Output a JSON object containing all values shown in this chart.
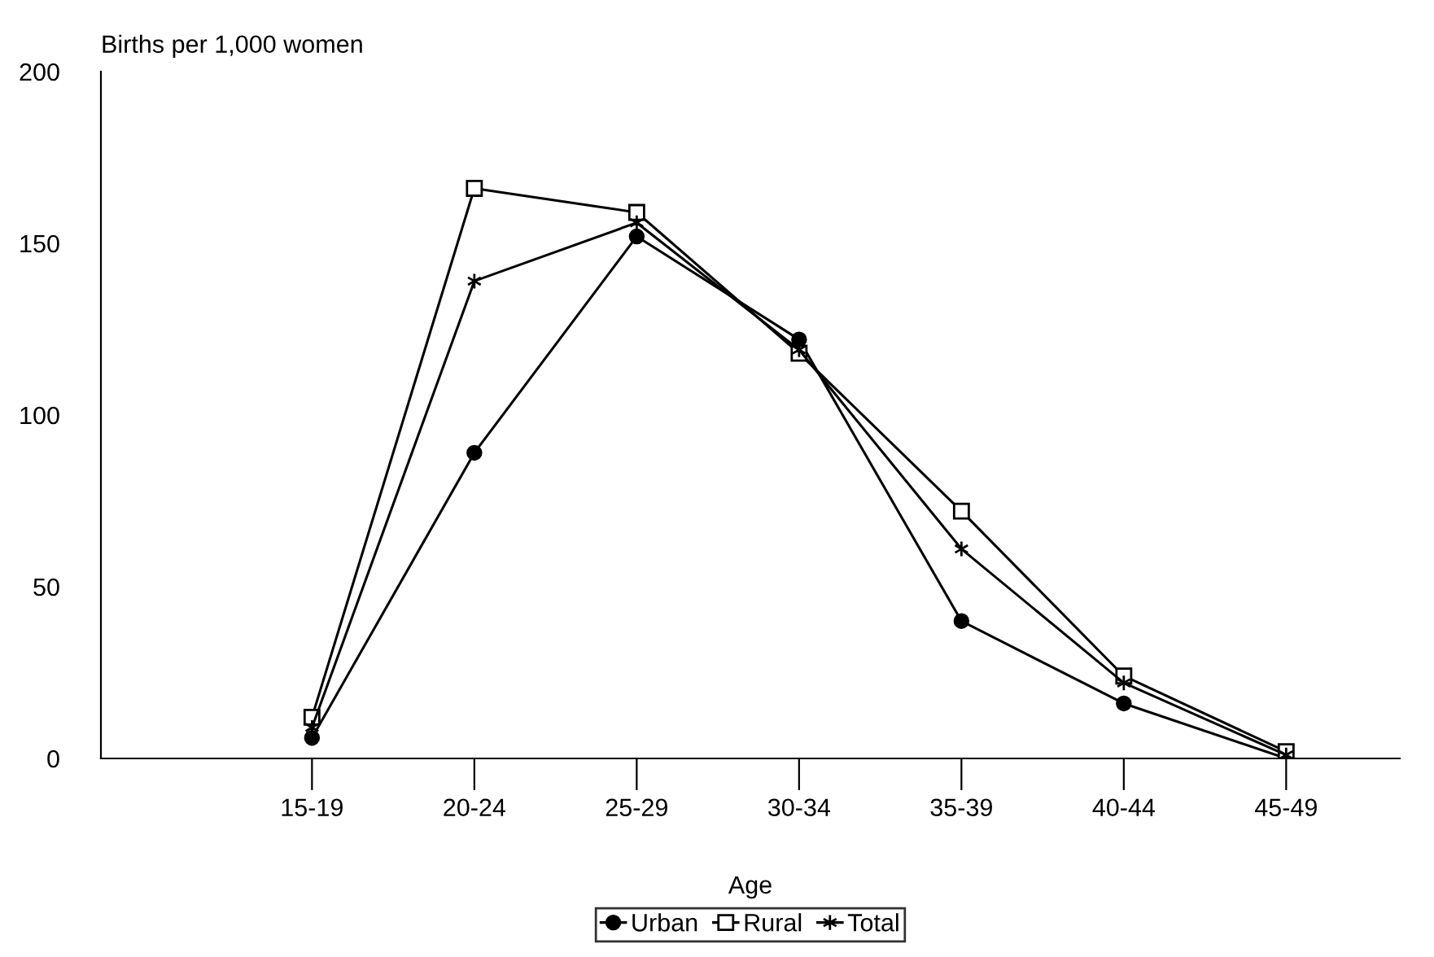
{
  "chart_data": {
    "type": "line",
    "xlabel": "Age",
    "ylabel": "Births per 1,000 women",
    "categories": [
      "15-19",
      "20-24",
      "25-29",
      "30-34",
      "35-39",
      "40-44",
      "45-49"
    ],
    "series": [
      {
        "name": "Urban",
        "color": "#000000",
        "marker": "circle",
        "values": [
          6,
          89,
          152,
          122,
          40,
          16,
          0
        ]
      },
      {
        "name": "Rural",
        "color": "#000000",
        "marker": "square",
        "values": [
          12,
          166,
          159,
          118,
          72,
          24,
          2
        ]
      },
      {
        "name": "Total",
        "color": "#000000",
        "marker": "cross",
        "values": [
          9,
          139,
          156,
          119,
          61,
          22,
          1
        ]
      }
    ],
    "ylim": [
      0,
      200
    ],
    "yticks": [
      0,
      50,
      100,
      150,
      200
    ],
    "grid": false,
    "legend": "bottom",
    "line_style": "solid"
  }
}
